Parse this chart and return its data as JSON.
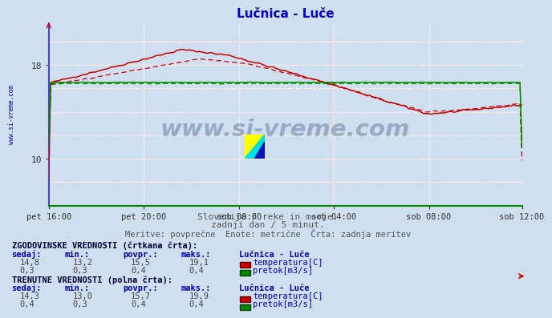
{
  "title": "Lučnica - Luče",
  "title_color": "#0000cc",
  "bg_color": "#d0dff0",
  "plot_bg_color": "#d0dff0",
  "grid_white_color": "#ffffff",
  "grid_pink_color": "#e8b8b8",
  "x_tick_labels": [
    "pet 16:00",
    "pet 20:00",
    "sob 00:00",
    "sob 04:00",
    "sob 08:00",
    "sob 12:00"
  ],
  "x_tick_positions": [
    0,
    48,
    96,
    144,
    192,
    239
  ],
  "y_ticks": [
    10,
    18
  ],
  "ylim": [
    6.0,
    21.5
  ],
  "xlim": [
    0,
    239
  ],
  "watermark_text": "www.si-vreme.com",
  "watermark_color": "#1a3060",
  "watermark_alpha": 0.3,
  "subtitle1": "Slovenija / reke in morje.",
  "subtitle2": "zadnji dan / 5 minut.",
  "subtitle3": "Meritve: povprečne  Enote: metrične  Črta: zadnja meritev",
  "subtitle_color": "#555555",
  "table_header1": "ZGODOVINSKE VREDNOSTI (črtkana črta):",
  "table_header2": "TRENUTNE VREDNOSTI (polna črta):",
  "table_col_headers": [
    "sedaj:",
    "min.:",
    "povpr.:",
    "maks.:",
    "Lučnica - Luče"
  ],
  "hist_temp_row": [
    "14,8",
    "13,2",
    "15,5",
    "19,1"
  ],
  "hist_flow_row": [
    "0,3",
    "0,3",
    "0,4",
    "0,4"
  ],
  "curr_temp_row": [
    "14,3",
    "13,0",
    "15,7",
    "19,9"
  ],
  "curr_flow_row": [
    "0,4",
    "0,3",
    "0,4",
    "0,4"
  ],
  "temp_label": "temperatura[C]",
  "flow_label": "pretok[m3/s]",
  "temp_color_hist": "#cc0000",
  "temp_color_curr": "#cc0000",
  "flow_color_hist": "#008800",
  "flow_color_curr": "#008800",
  "left_label": "www.si-vreme.com",
  "left_label_color": "#0000aa",
  "spine_left_color": "#4444cc",
  "spine_bottom_color": "#008800",
  "arrow_color": "#cc0000"
}
